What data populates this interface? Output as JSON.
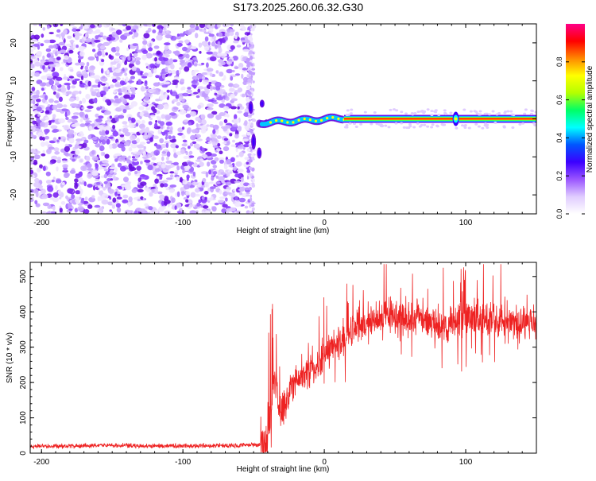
{
  "title": "S173.2025.260.06.32.G30",
  "chart_data": [
    {
      "type": "heatmap",
      "name": "spectrogram",
      "xlabel": "Height of straight line (km)",
      "ylabel": "Frequency (Hz)",
      "xlim": [
        -208,
        150
      ],
      "ylim": [
        -25,
        25
      ],
      "xticks": [
        -200,
        -100,
        0,
        100
      ],
      "yticks": [
        20,
        10,
        0,
        -10,
        -20
      ],
      "grid": false,
      "noise_region_x": [
        -208,
        -52
      ],
      "transition_x": [
        -52,
        14
      ],
      "signal_band_x": [
        14,
        150
      ],
      "signal_band_frequency": 0,
      "blips_x": [
        93
      ],
      "colorbar": {
        "label": "Normalized spectral amplitude",
        "ticks": [
          0.0,
          0.2,
          0.4,
          0.6,
          0.8
        ],
        "range": [
          0,
          1
        ],
        "colors": [
          "#ffffff",
          "#e0ccff",
          "#9a55ff",
          "#3b00ff",
          "#0055ff",
          "#00ffff",
          "#00ff66",
          "#b4ff00",
          "#ffff00",
          "#ff8800",
          "#ff0000",
          "#ff0088"
        ]
      }
    },
    {
      "type": "line",
      "name": "snr",
      "xlabel": "Height of straight line (km)",
      "ylabel": "SNR (10 * v/v)",
      "xlim": [
        -208,
        150
      ],
      "ylim": [
        0,
        540
      ],
      "xticks": [
        -200,
        -100,
        0,
        100
      ],
      "yticks": [
        0,
        100,
        200,
        300,
        400,
        500
      ],
      "color": "#ee2222",
      "grid": false,
      "series": [
        {
          "name": "SNR",
          "x": [
            -208,
            -180,
            -150,
            -120,
            -90,
            -60,
            -45,
            -40,
            -38,
            -35,
            -33,
            -30,
            -25,
            -20,
            -15,
            -10,
            -5,
            0,
            5,
            10,
            15,
            20,
            25,
            30,
            40,
            50,
            60,
            70,
            80,
            90,
            95,
            100,
            110,
            120,
            130,
            140,
            150
          ],
          "y": [
            20,
            20,
            22,
            20,
            21,
            22,
            24,
            40,
            100,
            230,
            160,
            120,
            170,
            200,
            220,
            240,
            260,
            280,
            300,
            310,
            330,
            350,
            360,
            370,
            385,
            385,
            380,
            375,
            360,
            365,
            380,
            390,
            380,
            375,
            370,
            365,
            360
          ]
        }
      ]
    }
  ]
}
